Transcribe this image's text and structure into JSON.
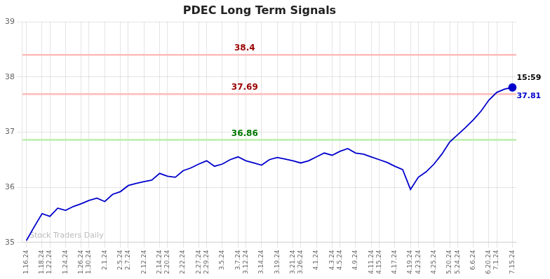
{
  "chart_data": {
    "type": "line",
    "title": "PDEC Long Term Signals",
    "categories": [
      "1.16.24",
      null,
      "1.18.24",
      "1.22.24",
      null,
      "1.24.24",
      null,
      "1.26.24",
      "1.30.24",
      null,
      "2.1.24",
      null,
      "2.5.24",
      "2.7.24",
      null,
      "2.12.24",
      null,
      "2.14.24",
      "2.20.24",
      null,
      "2.22.24",
      null,
      "2.27.24",
      "2.29.24",
      null,
      "3.5.24",
      null,
      "3.7.24",
      "3.12.24",
      null,
      "3.14.24",
      null,
      "3.19.24",
      null,
      "3.21.24",
      "3.26.24",
      null,
      "4.1.24",
      null,
      "4.3.24",
      "4.5.24",
      null,
      "4.9.24",
      null,
      "4.11.24",
      "4.15.24",
      null,
      "4.17.24",
      null,
      "4.19.24",
      "4.23.24",
      null,
      "4.25.24",
      null,
      "5.20.24",
      "5.24.24",
      null,
      "6.6.24",
      null,
      "6.20.24",
      "7.1.24",
      null,
      "7.15.24"
    ],
    "values": [
      35.03,
      35.28,
      35.52,
      35.47,
      35.62,
      35.58,
      35.65,
      35.7,
      35.76,
      35.8,
      35.74,
      35.87,
      35.92,
      36.03,
      36.07,
      36.1,
      36.13,
      36.25,
      36.2,
      36.18,
      36.3,
      36.35,
      36.42,
      36.48,
      36.38,
      36.42,
      36.5,
      36.55,
      36.48,
      36.44,
      36.4,
      36.5,
      36.54,
      36.51,
      36.48,
      36.44,
      36.48,
      36.55,
      36.62,
      36.58,
      36.65,
      36.7,
      36.62,
      36.6,
      36.55,
      36.5,
      36.45,
      36.38,
      36.32,
      35.96,
      36.18,
      36.28,
      36.42,
      36.6,
      36.82,
      36.95,
      37.08,
      37.22,
      37.38,
      37.58,
      37.72,
      37.78,
      37.81
    ],
    "color": "#0000cc",
    "ylim": [
      35,
      39
    ],
    "yticks": [
      35,
      36,
      37,
      38,
      39
    ],
    "grid": true,
    "annotations": [
      {
        "kind": "hline",
        "text": "38.4",
        "y": 38.4,
        "line_color": "#ffbbbb",
        "color": "#990000"
      },
      {
        "kind": "hline",
        "text": "37.69",
        "y": 37.69,
        "line_color": "#ffbbbb",
        "color": "#990000"
      },
      {
        "kind": "hline",
        "text": "36.86",
        "y": 36.86,
        "line_color": "#bbeeaa",
        "color": "#007700"
      },
      {
        "kind": "last_point_above",
        "text": "15:59",
        "color": "#000000"
      },
      {
        "kind": "last_point_below",
        "text": "37.81",
        "color": "#0000cc"
      },
      {
        "kind": "watermark",
        "text": "Stock Traders Daily"
      }
    ]
  }
}
